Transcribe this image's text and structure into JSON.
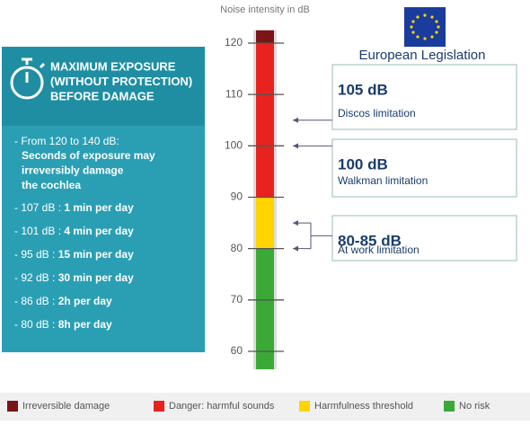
{
  "scale": {
    "title": "Noise intensity in dB",
    "ylim": [
      56.5,
      122.5
    ],
    "ticks": [
      60,
      70,
      80,
      90,
      100,
      110,
      120
    ],
    "bands": [
      {
        "from": 80,
        "to": 56.5,
        "color": "#3aa935"
      },
      {
        "from": 90,
        "to": 80,
        "color": "#ffd400"
      },
      {
        "from": 120,
        "to": 90,
        "color": "#e8231f"
      },
      {
        "from": 122.5,
        "to": 120,
        "color": "#7a1416"
      }
    ]
  },
  "panel": {
    "title": [
      "MAXIMUM EXPOSURE",
      "(WITHOUT PROTECTION)",
      "BEFORE DAMAGE"
    ],
    "intro": {
      "text": "- From 120 to 140 dB:",
      "bold": [
        "Seconds of exposure may",
        "irreversibly damage",
        "the cochlea"
      ]
    },
    "items": [
      {
        "text": "- 107 dB :",
        "bold": "1 min per day"
      },
      {
        "text": "- 101 dB :",
        "bold": "4 min per day"
      },
      {
        "text": "- 95 dB :",
        "bold": "15 min per day"
      },
      {
        "text": "- 92 dB :",
        "bold": "30 min per day"
      },
      {
        "text": "- 86 dB :",
        "bold": "2h per day"
      },
      {
        "text": "- 80 dB :",
        "bold": "8h per day"
      }
    ]
  },
  "legislation": {
    "title": "European Legislation",
    "items": [
      {
        "levels": [
          105
        ],
        "label": "105 dB",
        "desc": "Discos limitation"
      },
      {
        "levels": [
          100
        ],
        "label": "100 dB",
        "desc": "Walkman limitation"
      },
      {
        "levels": [
          85,
          80
        ],
        "label": "80-85 dB",
        "desc": "At work limitation"
      }
    ]
  },
  "legend": [
    {
      "label": "Irreversible damage",
      "color": "#7a1416"
    },
    {
      "label": "Danger: harmful sounds",
      "color": "#e8231f"
    },
    {
      "label": "Harmfulness threshold",
      "color": "#ffd400"
    },
    {
      "label": "No risk",
      "color": "#3aa935"
    }
  ]
}
